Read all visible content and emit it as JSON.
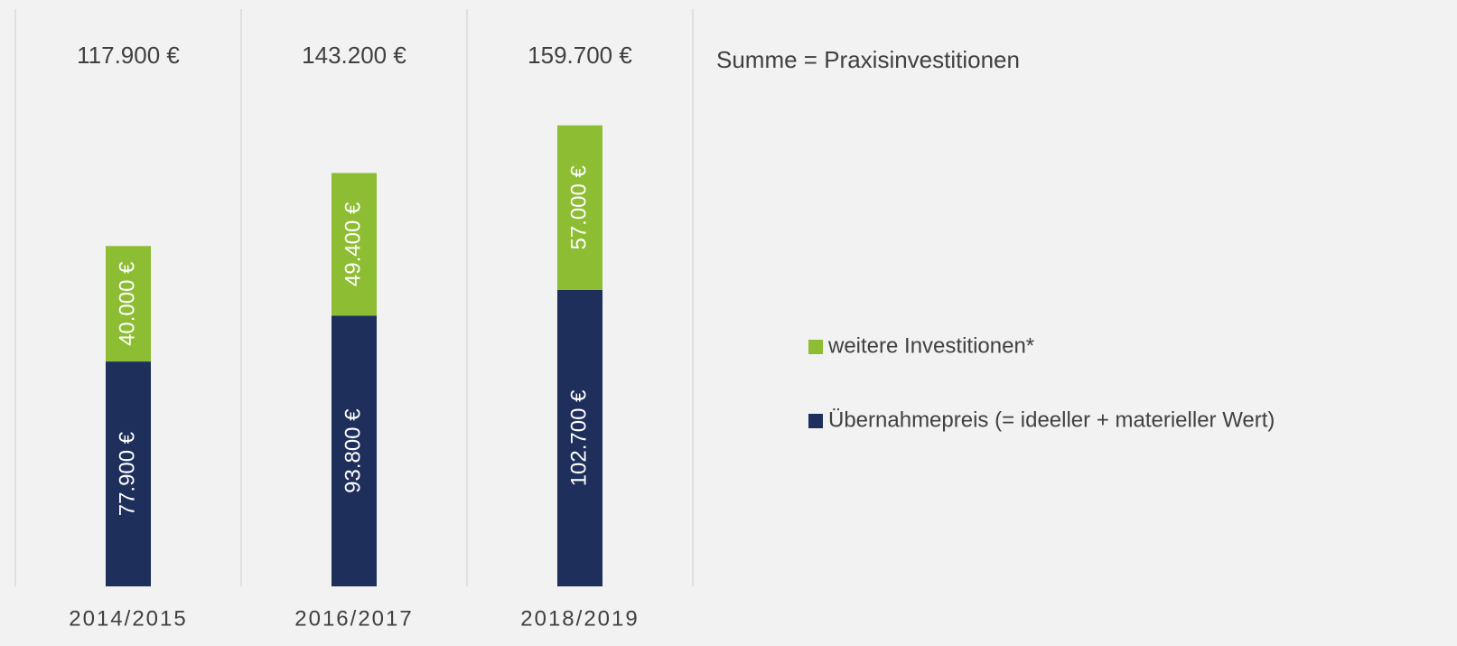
{
  "chart_data": {
    "type": "stacked_bar",
    "categories": [
      "2014/2015",
      "2016/2017",
      "2018/2019"
    ],
    "series": [
      {
        "name": "Übernahmepreis (= ideeller + materieller Wert)",
        "color": "#1f2f5c",
        "values": [
          77900,
          93800,
          102700
        ],
        "value_labels": [
          "77.900 €",
          "93.800 €",
          "102.700 €"
        ]
      },
      {
        "name": "weitere Investitionen*",
        "color": "#8dbd32",
        "values": [
          40000,
          49400,
          57000
        ],
        "value_labels": [
          "40.000 €",
          "49.400 €",
          "57.000 €"
        ]
      }
    ],
    "totals": {
      "values": [
        117900,
        143200,
        159700
      ],
      "value_labels": [
        "117.900 €",
        "143.200 €",
        "159.700 €"
      ]
    },
    "annotation": "Summe = Praxisinvestitionen",
    "ylim": [
      0,
      200000
    ],
    "legend": "right"
  }
}
